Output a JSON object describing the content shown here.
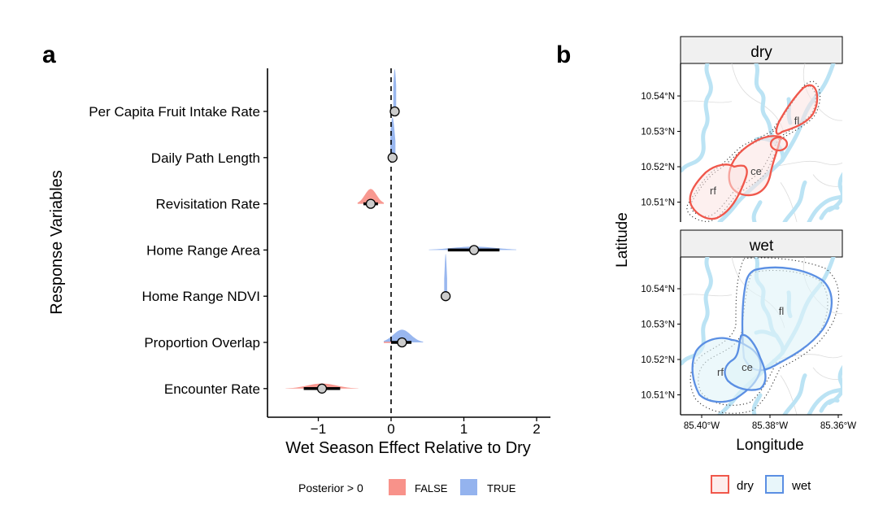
{
  "panels": {
    "a": "a",
    "b": "b"
  },
  "chart_data": [
    {
      "type": "violin-pointinterval",
      "panel": "a",
      "title": "",
      "xlabel": "Wet Season Effect Relative to Dry",
      "ylabel": "Response Variables",
      "xlim": [
        -1.7,
        2.2
      ],
      "xticks": [
        -1,
        0,
        1,
        2
      ],
      "xtick_labels": [
        "−1",
        "0",
        "1",
        "2"
      ],
      "reference_line": 0,
      "categories": [
        "Per Capita Fruit Intake Rate",
        "Daily Path Length",
        "Revisitation Rate",
        "Home Range Area",
        "Home Range NDVI",
        "Proportion Overlap",
        "Encounter Rate"
      ],
      "series": [
        {
          "name": "Per Capita Fruit Intake Rate",
          "median": 0.05,
          "ci_low": 0.04,
          "ci_high": 0.06,
          "tail_low": 0.03,
          "tail_high": 0.07,
          "spread": 0.02,
          "height": 1.0,
          "posterior_gt0": "TRUE"
        },
        {
          "name": "Daily Path Length",
          "median": 0.02,
          "ci_low": 0.0,
          "ci_high": 0.04,
          "tail_low": -0.01,
          "tail_high": 0.06,
          "spread": 0.03,
          "height": 0.95,
          "posterior_gt0": "TRUE"
        },
        {
          "name": "Revisitation Rate",
          "median": -0.28,
          "ci_low": -0.38,
          "ci_high": -0.18,
          "tail_low": -0.46,
          "tail_high": -0.1,
          "spread": 0.08,
          "height": 0.35,
          "posterior_gt0": "FALSE"
        },
        {
          "name": "Home Range Area",
          "median": 1.14,
          "ci_low": 0.78,
          "ci_high": 1.49,
          "tail_low": 0.52,
          "tail_high": 1.72,
          "spread": 0.3,
          "height": 0.08,
          "posterior_gt0": "TRUE"
        },
        {
          "name": "Home Range NDVI",
          "median": 0.75,
          "ci_low": 0.74,
          "ci_high": 0.76,
          "tail_low": 0.73,
          "tail_high": 0.77,
          "spread": 0.015,
          "height": 1.0,
          "posterior_gt0": "TRUE"
        },
        {
          "name": "Proportion Overlap",
          "median": 0.15,
          "ci_low": 0.0,
          "ci_high": 0.28,
          "tail_low": -0.1,
          "tail_high": 0.44,
          "spread": 0.12,
          "height": 0.3,
          "posterior_gt0": "TRUE"
        },
        {
          "name": "Encounter Rate",
          "median": -0.95,
          "ci_low": -1.2,
          "ci_high": -0.7,
          "tail_low": -1.45,
          "tail_high": -0.45,
          "spread": 0.2,
          "height": 0.12,
          "posterior_gt0": "FALSE"
        }
      ],
      "legend": {
        "title": "Posterior > 0",
        "position": "bottom",
        "entries": [
          {
            "label": "FALSE",
            "color": "#F8928A"
          },
          {
            "label": "TRUE",
            "color": "#94B3EE"
          }
        ]
      }
    },
    {
      "type": "map",
      "panel": "b",
      "facets": [
        "dry",
        "wet"
      ],
      "xlabel": "Longitude",
      "ylabel": "Latitude",
      "xticks": [
        "85.40°W",
        "85.38°W",
        "85.36°W"
      ],
      "yticks": [
        "10.54°N",
        "10.53°N",
        "10.52°N",
        "10.51°N"
      ],
      "region_labels": [
        "rf",
        "ce",
        "fl"
      ],
      "legend": {
        "position": "bottom",
        "entries": [
          {
            "label": "dry",
            "stroke": "#F0574B",
            "fill": "#FDEDEC"
          },
          {
            "label": "wet",
            "stroke": "#5B8FE3",
            "fill": "#E8F6FA"
          }
        ]
      },
      "colors": {
        "river": "#B9E2F3",
        "road": "#D9D9D9",
        "strip_bg": "#F0F0F0"
      }
    }
  ]
}
